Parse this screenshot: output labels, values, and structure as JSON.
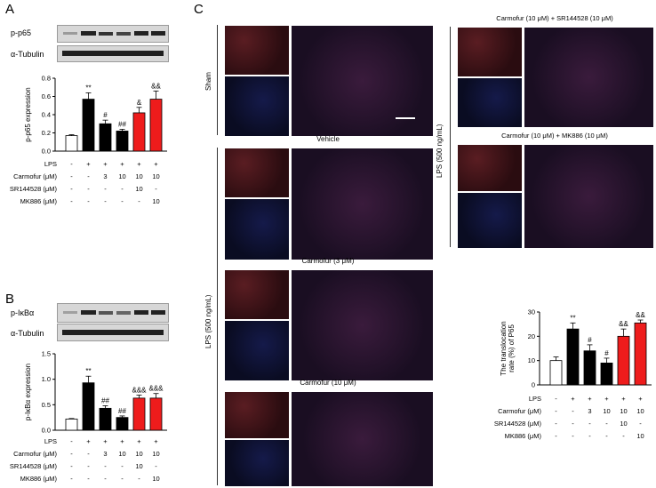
{
  "panel_letters": {
    "a": "A",
    "b": "B",
    "c": "C"
  },
  "panel_a": {
    "blot_labels": [
      "p-p65",
      "α-Tubulin"
    ],
    "ylabel": "p-p65 expression",
    "yticks": [
      "0.0",
      "0.2",
      "0.4",
      "0.6",
      "0.8"
    ],
    "bars": [
      {
        "value": 0.17,
        "err": 0.01,
        "color": "#ffffff",
        "sig": ""
      },
      {
        "value": 0.57,
        "err": 0.07,
        "color": "#000000",
        "sig": "**"
      },
      {
        "value": 0.3,
        "err": 0.04,
        "color": "#000000",
        "sig": "#"
      },
      {
        "value": 0.22,
        "err": 0.02,
        "color": "#000000",
        "sig": "##"
      },
      {
        "value": 0.42,
        "err": 0.06,
        "color": "#ee1c1c",
        "sig": "&"
      },
      {
        "value": 0.57,
        "err": 0.09,
        "color": "#ee1c1c",
        "sig": "&&"
      }
    ],
    "table": [
      {
        "label": "LPS",
        "cells": [
          "-",
          "+",
          "+",
          "+",
          "+",
          "+"
        ]
      },
      {
        "label": "Carmofur (μM)",
        "cells": [
          "-",
          "-",
          "3",
          "10",
          "10",
          "10"
        ]
      },
      {
        "label": "SR144528 (μM)",
        "cells": [
          "-",
          "-",
          "-",
          "-",
          "10",
          "-"
        ]
      },
      {
        "label": "MK886 (μM)",
        "cells": [
          "-",
          "-",
          "-",
          "-",
          "-",
          "10"
        ]
      }
    ]
  },
  "panel_b": {
    "blot_labels": [
      "p-IκBα",
      "α-Tubulin"
    ],
    "ylabel": "p-IκBα expression",
    "yticks": [
      "0.0",
      "0.5",
      "1.0",
      "1.5"
    ],
    "bars": [
      {
        "value": 0.22,
        "err": 0.01,
        "color": "#ffffff",
        "sig": ""
      },
      {
        "value": 0.93,
        "err": 0.13,
        "color": "#000000",
        "sig": "**"
      },
      {
        "value": 0.43,
        "err": 0.05,
        "color": "#000000",
        "sig": "##"
      },
      {
        "value": 0.25,
        "err": 0.03,
        "color": "#000000",
        "sig": "##"
      },
      {
        "value": 0.63,
        "err": 0.06,
        "color": "#ee1c1c",
        "sig": "&&&"
      },
      {
        "value": 0.63,
        "err": 0.09,
        "color": "#ee1c1c",
        "sig": "&&&"
      }
    ],
    "table": [
      {
        "label": "LPS",
        "cells": [
          "-",
          "+",
          "+",
          "+",
          "+",
          "+"
        ]
      },
      {
        "label": "Carmofur (μM)",
        "cells": [
          "-",
          "-",
          "3",
          "10",
          "10",
          "10"
        ]
      },
      {
        "label": "SR144528 (μM)",
        "cells": [
          "-",
          "-",
          "-",
          "-",
          "10",
          "-"
        ]
      },
      {
        "label": "MK886 (μM)",
        "cells": [
          "-",
          "-",
          "-",
          "-",
          "-",
          "10"
        ]
      }
    ]
  },
  "panel_c": {
    "conditions": {
      "sham": "Sham",
      "vehicle": "Vehicle",
      "carmofur3": "Carmofur (3 μM)",
      "carmofur10": "Carmofur (10 μM)",
      "carm_sr": "Carmofur (10 μM) + SR144528 (10 μM)",
      "carm_mk": "Carmofur (10 μM) + MK886 (10 μM)"
    },
    "lps_label_left": "LPS (500 ng/mL)",
    "lps_label_right": "LPS (500 ng/mL)",
    "chart": {
      "ylabel_line1": "The translocation",
      "ylabel_line2": "rate (%) of P65",
      "yticks": [
        "0",
        "10",
        "20",
        "30"
      ],
      "bars": [
        {
          "value": 10,
          "err": 1.5,
          "color": "#ffffff",
          "sig": ""
        },
        {
          "value": 23,
          "err": 2.5,
          "color": "#000000",
          "sig": "**"
        },
        {
          "value": 14,
          "err": 2.5,
          "color": "#000000",
          "sig": "#"
        },
        {
          "value": 9,
          "err": 2.0,
          "color": "#000000",
          "sig": "#"
        },
        {
          "value": 20,
          "err": 3.0,
          "color": "#ee1c1c",
          "sig": "&&"
        },
        {
          "value": 25.5,
          "err": 1.2,
          "color": "#ee1c1c",
          "sig": "&&"
        }
      ],
      "table": [
        {
          "label": "LPS",
          "cells": [
            "-",
            "+",
            "+",
            "+",
            "+",
            "+"
          ]
        },
        {
          "label": "Carmofur (μM)",
          "cells": [
            "-",
            "-",
            "3",
            "10",
            "10",
            "10"
          ]
        },
        {
          "label": "SR144528 (μM)",
          "cells": [
            "-",
            "-",
            "-",
            "-",
            "10",
            "-"
          ]
        },
        {
          "label": "MK886 (μM)",
          "cells": [
            "-",
            "-",
            "-",
            "-",
            "-",
            "10"
          ]
        }
      ]
    }
  },
  "chart_data": [
    {
      "type": "bar",
      "ylabel": "p-p65 expression",
      "ylim": [
        0,
        0.8
      ],
      "values": [
        0.17,
        0.57,
        0.3,
        0.22,
        0.42,
        0.57
      ]
    },
    {
      "type": "bar",
      "ylabel": "p-IκBα expression",
      "ylim": [
        0,
        1.5
      ],
      "values": [
        0.22,
        0.93,
        0.43,
        0.25,
        0.63,
        0.63
      ]
    },
    {
      "type": "bar",
      "ylabel": "The translocation rate (%) of P65",
      "ylim": [
        0,
        30
      ],
      "values": [
        10,
        23,
        14,
        9,
        20,
        25.5
      ]
    }
  ],
  "colors": {
    "red_bar": "#ee1c1c",
    "black_bar": "#000000"
  }
}
